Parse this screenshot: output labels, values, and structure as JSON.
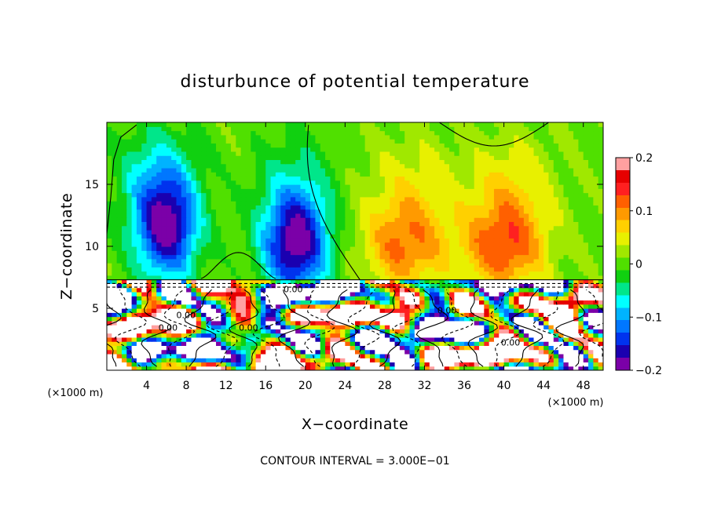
{
  "chart_data": {
    "type": "heatmap",
    "title": "disturbunce of potential temperature",
    "xlabel": "X−coordinate",
    "ylabel": "Z−coordinate",
    "x_unit_label": "(×1000 m)",
    "x_unit_label_right": "(×1000 m)",
    "xlim": [
      0,
      50
    ],
    "ylim": [
      0,
      20
    ],
    "x_ticks": [
      4,
      8,
      12,
      16,
      20,
      24,
      28,
      32,
      36,
      40,
      44,
      48
    ],
    "y_ticks": [
      5,
      10,
      15
    ],
    "colorbar": {
      "range": [
        -0.2,
        0.2
      ],
      "tick_values": [
        0.2,
        0.1,
        0,
        -0.1,
        -0.2
      ],
      "tick_labels": [
        "0.2",
        "0.1",
        "0",
        "−0.1",
        "−0.2"
      ]
    },
    "contour_interval_text": "CONTOUR INTERVAL = 3.000E−01",
    "contour_labels": [
      "0.00",
      "0.00",
      "0.00",
      "0.00",
      "0.00",
      "0.00"
    ],
    "upper_field_features": [
      {
        "kind": "cold_lobe",
        "center_x": 6,
        "center_z": 11.5,
        "value": -0.19
      },
      {
        "kind": "cold_lobe",
        "center_x": 19,
        "center_z": 10,
        "value": -0.18
      },
      {
        "kind": "warm_lobe",
        "center_x": 30,
        "center_z": 10,
        "value": 0.1
      },
      {
        "kind": "warm_lobe",
        "center_x": 40,
        "center_z": 10,
        "value": 0.12
      }
    ],
    "colors": {
      "scale": [
        "#7b00a8",
        "#1a00b0",
        "#0033ee",
        "#0077ff",
        "#00b3ff",
        "#00ffff",
        "#00e68a",
        "#10d010",
        "#50e000",
        "#a0e800",
        "#e8f000",
        "#ffd000",
        "#ff9a00",
        "#ff6000",
        "#ff2020",
        "#e60000",
        "#ffa0a0"
      ]
    }
  }
}
